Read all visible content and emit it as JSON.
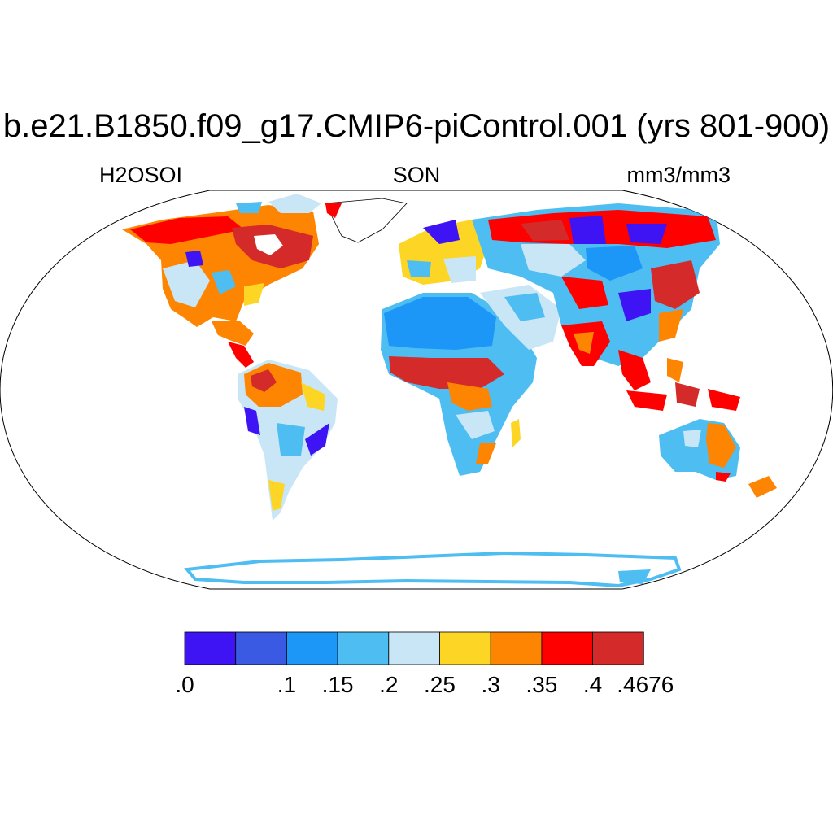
{
  "title": "b.e21.B1850.f09_g17.CMIP6-piControl.001 (yrs 801-900)",
  "left_string": "H2OSOI",
  "center_string": "SON",
  "right_string": "mm3/mm3",
  "colorbar": {
    "colors": [
      "#3e14f5",
      "#3a5ae4",
      "#1c96f7",
      "#4dbdf2",
      "#c9e6f7",
      "#fdd524",
      "#fd8502",
      "#fe0000",
      "#d42a2a"
    ],
    "labels": [
      ".0",
      ".1",
      ".15",
      ".2",
      ".25",
      ".3",
      ".35",
      ".4",
      ".4676"
    ]
  },
  "map": {
    "projection": "Robinson",
    "variable": "H2OSOI",
    "season": "SON",
    "units": "mm3/mm3",
    "value_range": [
      0.0,
      0.4676
    ],
    "colors": {
      "ocean": "#ffffff",
      "outline": "#000000",
      "antarctica": "#4dbdf2"
    }
  }
}
